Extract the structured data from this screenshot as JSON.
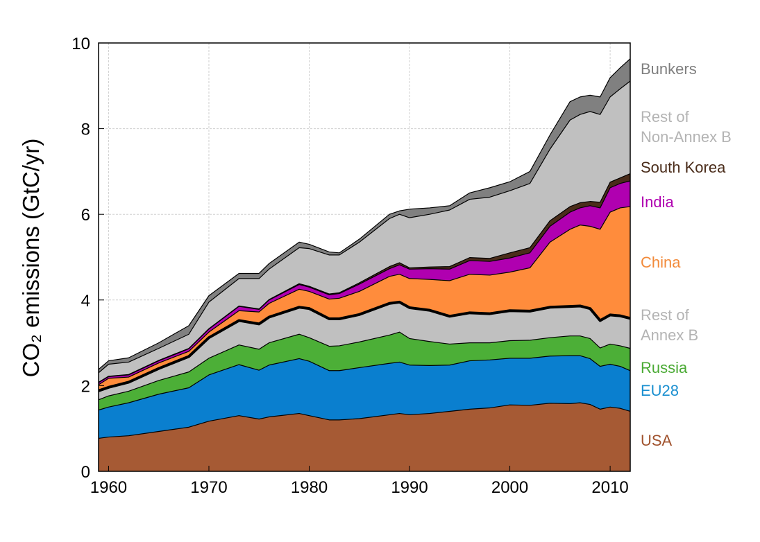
{
  "chart_data": {
    "type": "area",
    "stacked": true,
    "title": "",
    "xlabel": "",
    "ylabel": "CO₂ emissions (GtC/yr)",
    "xlim": [
      1959,
      2012
    ],
    "ylim": [
      0,
      10
    ],
    "xticks": [
      1960,
      1970,
      1980,
      1990,
      2000,
      2010
    ],
    "yticks": [
      0,
      2,
      4,
      6,
      8,
      10
    ],
    "grid": true,
    "legend": "direct labels at right",
    "x": [
      1959,
      1960,
      1962,
      1965,
      1968,
      1970,
      1973,
      1975,
      1976,
      1979,
      1980,
      1982,
      1983,
      1985,
      1988,
      1989,
      1990,
      1992,
      1994,
      1996,
      1998,
      2000,
      2002,
      2004,
      2006,
      2007,
      2008,
      2009,
      2010,
      2011,
      2012
    ],
    "series": [
      {
        "name": "USA",
        "color": "#a65a34",
        "label_color": "#a0522d",
        "values": [
          0.77,
          0.8,
          0.83,
          0.93,
          1.03,
          1.17,
          1.3,
          1.22,
          1.27,
          1.35,
          1.3,
          1.2,
          1.2,
          1.23,
          1.32,
          1.35,
          1.32,
          1.35,
          1.4,
          1.45,
          1.48,
          1.55,
          1.54,
          1.59,
          1.58,
          1.6,
          1.56,
          1.45,
          1.5,
          1.47,
          1.4
        ]
      },
      {
        "name": "EU28",
        "color": "#0a7fcf",
        "label_color": "#1a8fd0",
        "values": [
          0.66,
          0.7,
          0.77,
          0.87,
          0.92,
          1.08,
          1.19,
          1.14,
          1.21,
          1.28,
          1.27,
          1.15,
          1.15,
          1.19,
          1.2,
          1.2,
          1.16,
          1.12,
          1.08,
          1.13,
          1.12,
          1.09,
          1.1,
          1.1,
          1.12,
          1.1,
          1.07,
          1.0,
          1.0,
          0.98,
          0.95
        ]
      },
      {
        "name": "Russia",
        "color": "#4caf37",
        "label_color": "#4aaa34",
        "values": [
          0.24,
          0.26,
          0.27,
          0.32,
          0.37,
          0.39,
          0.46,
          0.49,
          0.52,
          0.57,
          0.55,
          0.57,
          0.58,
          0.6,
          0.66,
          0.7,
          0.62,
          0.56,
          0.49,
          0.42,
          0.4,
          0.41,
          0.42,
          0.43,
          0.46,
          0.46,
          0.47,
          0.43,
          0.47,
          0.48,
          0.52
        ]
      },
      {
        "name": "Rest of Annex B",
        "color": "#c0c0c0",
        "label_color": "#b4b4b4",
        "values": [
          0.21,
          0.2,
          0.21,
          0.28,
          0.36,
          0.48,
          0.57,
          0.59,
          0.6,
          0.63,
          0.68,
          0.64,
          0.63,
          0.64,
          0.74,
          0.7,
          0.72,
          0.73,
          0.65,
          0.7,
          0.68,
          0.7,
          0.68,
          0.71,
          0.69,
          0.7,
          0.7,
          0.64,
          0.68,
          0.7,
          0.7
        ]
      },
      {
        "name": "China",
        "color": "#ff8c3c",
        "label_color": "#f28a3a",
        "values": [
          0.14,
          0.21,
          0.12,
          0.13,
          0.12,
          0.13,
          0.23,
          0.28,
          0.32,
          0.42,
          0.4,
          0.46,
          0.48,
          0.54,
          0.63,
          0.65,
          0.68,
          0.72,
          0.83,
          0.9,
          0.9,
          0.9,
          1.01,
          1.52,
          1.8,
          1.89,
          1.92,
          2.13,
          2.4,
          2.52,
          2.61
        ]
      },
      {
        "name": "India",
        "color": "#b000b0",
        "label_color": "#b000b0",
        "values": [
          0.05,
          0.04,
          0.05,
          0.05,
          0.06,
          0.07,
          0.1,
          0.06,
          0.08,
          0.11,
          0.1,
          0.1,
          0.11,
          0.17,
          0.18,
          0.22,
          0.22,
          0.25,
          0.27,
          0.32,
          0.32,
          0.33,
          0.35,
          0.37,
          0.4,
          0.4,
          0.48,
          0.5,
          0.57,
          0.57,
          0.6
        ]
      },
      {
        "name": "South Korea",
        "color": "#4a2c1a",
        "label_color": "#4a2c1a",
        "values": [
          0.01,
          0.01,
          0.01,
          0.01,
          0.01,
          0.01,
          0.01,
          0.01,
          0.01,
          0.02,
          0.02,
          0.02,
          0.02,
          0.03,
          0.05,
          0.05,
          0.03,
          0.04,
          0.06,
          0.07,
          0.07,
          0.12,
          0.12,
          0.13,
          0.13,
          0.12,
          0.1,
          0.13,
          0.13,
          0.13,
          0.17
        ]
      },
      {
        "name": "Rest of Non-Annex B",
        "color": "#c0c0c0",
        "label_color": "#b4b4b4",
        "values": [
          0.22,
          0.28,
          0.29,
          0.28,
          0.33,
          0.62,
          0.64,
          0.71,
          0.71,
          0.84,
          0.88,
          0.91,
          0.88,
          0.95,
          1.12,
          1.13,
          1.17,
          1.23,
          1.32,
          1.36,
          1.43,
          1.45,
          1.5,
          1.67,
          2.02,
          2.06,
          2.1,
          2.05,
          1.99,
          2.08,
          2.16
        ]
      },
      {
        "name": "Bunkers",
        "color": "#808080",
        "label_color": "#7f7f7f",
        "values": [
          0.08,
          0.08,
          0.1,
          0.13,
          0.2,
          0.15,
          0.12,
          0.12,
          0.13,
          0.13,
          0.1,
          0.07,
          0.05,
          0.07,
          0.1,
          0.08,
          0.2,
          0.15,
          0.1,
          0.15,
          0.22,
          0.21,
          0.28,
          0.33,
          0.43,
          0.41,
          0.38,
          0.41,
          0.45,
          0.49,
          0.52
        ]
      }
    ]
  }
}
